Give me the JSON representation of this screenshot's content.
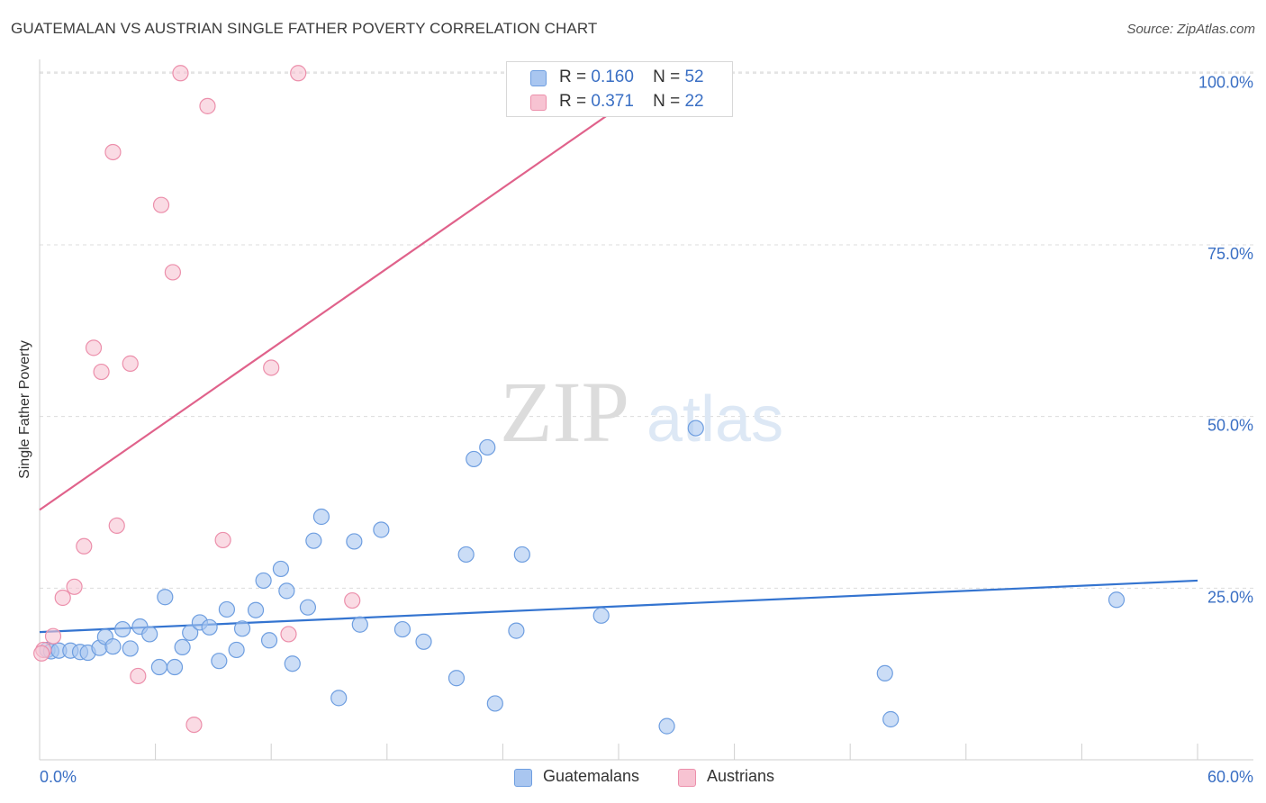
{
  "header": {
    "title": "GUATEMALAN VS AUSTRIAN SINGLE FATHER POVERTY CORRELATION CHART",
    "source": "Source: ZipAtlas.com"
  },
  "watermark": {
    "zip": "ZIP",
    "atlas": "atlas"
  },
  "legend": {
    "rows": [
      {
        "r_label": "R =",
        "r_value": "0.160",
        "n_label": "N =",
        "n_value": "52",
        "color": "#a9c6f0",
        "border": "#6e9ee0"
      },
      {
        "r_label": "R =",
        "r_value": "0.371",
        "n_label": "N =",
        "n_value": "22",
        "color": "#f7c3d2",
        "border": "#ec8fab"
      }
    ]
  },
  "bottom_legend": [
    {
      "label": "Guatemalans",
      "color": "#a9c6f0",
      "border": "#6e9ee0"
    },
    {
      "label": "Austrians",
      "color": "#f7c3d2",
      "border": "#ec8fab"
    }
  ],
  "chart_data": {
    "type": "scatter",
    "title": "GUATEMALAN VS AUSTRIAN SINGLE FATHER POVERTY CORRELATION CHART",
    "xlabel": "",
    "ylabel": "Single Father Poverty",
    "xlim": [
      0,
      60
    ],
    "ylim": [
      0,
      102
    ],
    "x_tick_labels": [
      "0.0%",
      "60.0%"
    ],
    "y_ticks": [
      25,
      50,
      75,
      100
    ],
    "y_tick_labels": [
      "25.0%",
      "50.0%",
      "75.0%",
      "100.0%"
    ],
    "grid": true,
    "legend_position": "top-center",
    "series": [
      {
        "name": "Guatemalans",
        "color": "#6e9ee0",
        "fill": "#a9c6f0",
        "line_color": "#3474d0",
        "trend": {
          "x": [
            0,
            60
          ],
          "y": [
            18.6,
            26.1
          ]
        },
        "points": [
          [
            0.4,
            16.0
          ],
          [
            0.6,
            15.8
          ],
          [
            1.0,
            15.9
          ],
          [
            1.6,
            15.9
          ],
          [
            2.1,
            15.7
          ],
          [
            2.5,
            15.6
          ],
          [
            3.1,
            16.3
          ],
          [
            3.4,
            17.9
          ],
          [
            3.8,
            16.5
          ],
          [
            4.3,
            19.0
          ],
          [
            4.7,
            16.2
          ],
          [
            5.2,
            19.4
          ],
          [
            5.7,
            18.3
          ],
          [
            6.2,
            13.5
          ],
          [
            6.5,
            23.7
          ],
          [
            7.0,
            13.5
          ],
          [
            7.4,
            16.4
          ],
          [
            7.8,
            18.5
          ],
          [
            8.3,
            20.0
          ],
          [
            8.8,
            19.3
          ],
          [
            9.3,
            14.4
          ],
          [
            9.7,
            21.9
          ],
          [
            10.2,
            16.0
          ],
          [
            10.5,
            19.1
          ],
          [
            11.2,
            21.8
          ],
          [
            11.6,
            26.1
          ],
          [
            11.9,
            17.4
          ],
          [
            12.5,
            27.8
          ],
          [
            12.8,
            24.6
          ],
          [
            13.1,
            14.0
          ],
          [
            13.9,
            22.2
          ],
          [
            14.2,
            31.9
          ],
          [
            14.6,
            35.4
          ],
          [
            15.5,
            9.0
          ],
          [
            16.3,
            31.8
          ],
          [
            16.6,
            19.7
          ],
          [
            17.7,
            33.5
          ],
          [
            18.8,
            19.0
          ],
          [
            19.9,
            17.2
          ],
          [
            21.6,
            11.9
          ],
          [
            22.1,
            29.9
          ],
          [
            22.5,
            43.8
          ],
          [
            23.2,
            45.5
          ],
          [
            23.6,
            8.2
          ],
          [
            24.7,
            18.8
          ],
          [
            25.0,
            29.9
          ],
          [
            29.1,
            21.0
          ],
          [
            32.5,
            4.9
          ],
          [
            34.0,
            48.3
          ],
          [
            43.8,
            12.6
          ],
          [
            44.1,
            5.9
          ],
          [
            55.8,
            23.3
          ]
        ]
      },
      {
        "name": "Austrians",
        "color": "#ec8fab",
        "fill": "#f7c3d2",
        "line_color": "#e0628b",
        "trend": {
          "x": [
            0,
            30
          ],
          "y": [
            36.4,
            95.0
          ]
        },
        "points": [
          [
            0.2,
            16.0
          ],
          [
            0.7,
            18.0
          ],
          [
            1.2,
            23.6
          ],
          [
            1.8,
            25.2
          ],
          [
            2.3,
            31.1
          ],
          [
            2.8,
            60.0
          ],
          [
            3.2,
            56.5
          ],
          [
            3.8,
            88.5
          ],
          [
            4.0,
            34.1
          ],
          [
            4.7,
            57.7
          ],
          [
            5.1,
            12.2
          ],
          [
            6.3,
            80.8
          ],
          [
            6.9,
            71.0
          ],
          [
            7.3,
            100.0
          ],
          [
            8.0,
            5.1
          ],
          [
            8.7,
            95.2
          ],
          [
            9.5,
            32.0
          ],
          [
            12.0,
            57.1
          ],
          [
            12.9,
            18.3
          ],
          [
            13.4,
            100.0
          ],
          [
            16.2,
            23.2
          ],
          [
            0.1,
            15.5
          ]
        ]
      }
    ]
  }
}
